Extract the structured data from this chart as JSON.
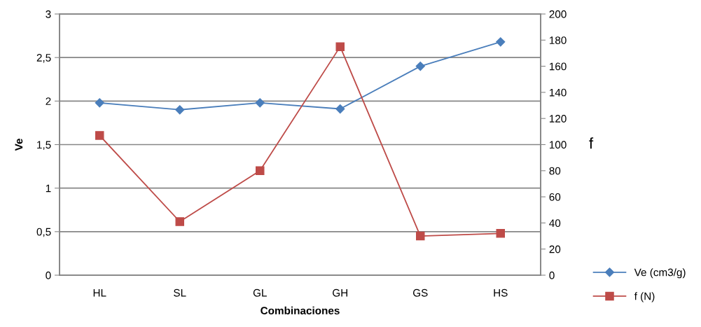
{
  "chart_data": {
    "type": "line",
    "xlabel": "Combinaciones",
    "ylabel": "Ve",
    "y2label": "f",
    "categories": [
      "HL",
      "SL",
      "GL",
      "GH",
      "GS",
      "HS"
    ],
    "series": [
      {
        "name": "Ve (cm3/g)",
        "color": "#4a7ebb",
        "marker": "diamond",
        "values": [
          1.98,
          1.9,
          1.98,
          1.91,
          2.4,
          2.68
        ]
      },
      {
        "name": "f (N)",
        "color": "#be4b48",
        "marker": "square",
        "axis": "y2",
        "values": [
          107,
          41,
          80,
          175,
          30,
          32
        ]
      }
    ],
    "ylim": [
      0,
      3
    ],
    "yticks": [
      0,
      {
        "value": 0.5,
        "label": "0,5"
      },
      1,
      {
        "value": 1.5,
        "label": "1,5"
      },
      2,
      {
        "value": 2.5,
        "label": "2,5"
      },
      3
    ],
    "y2lim": [
      0,
      200
    ],
    "y2ticks": [
      0,
      20,
      40,
      60,
      80,
      100,
      120,
      140,
      160,
      180,
      200
    ],
    "grid": "y",
    "legend": "bottom right",
    "line_style": "solid"
  }
}
